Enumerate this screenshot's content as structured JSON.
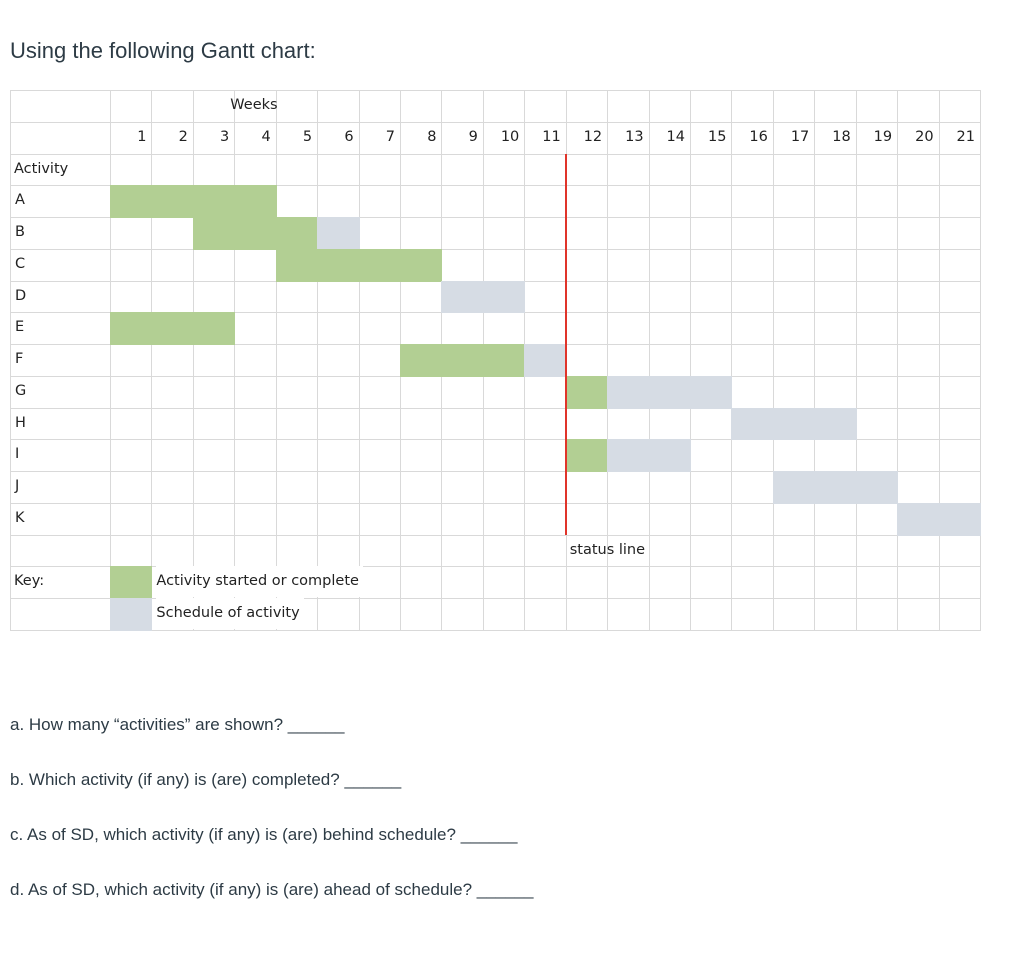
{
  "title": "Using the following Gantt chart:",
  "chart_data": {
    "type": "gantt",
    "header_label": "Weeks",
    "row_header": "Activity",
    "weeks": [
      1,
      2,
      3,
      4,
      5,
      6,
      7,
      8,
      9,
      10,
      11,
      12,
      13,
      14,
      15,
      16,
      17,
      18,
      19,
      20,
      21
    ],
    "activities": [
      {
        "name": "A",
        "started": [
          1,
          4
        ],
        "scheduled": null
      },
      {
        "name": "B",
        "started": [
          3,
          5
        ],
        "scheduled": [
          6,
          6
        ]
      },
      {
        "name": "C",
        "started": [
          5,
          8
        ],
        "scheduled": null
      },
      {
        "name": "D",
        "started": null,
        "scheduled": [
          9,
          10
        ]
      },
      {
        "name": "E",
        "started": [
          1,
          3
        ],
        "scheduled": null
      },
      {
        "name": "F",
        "started": [
          8,
          10
        ],
        "scheduled": [
          11,
          11
        ]
      },
      {
        "name": "G",
        "started": [
          12,
          12
        ],
        "scheduled": [
          13,
          15
        ]
      },
      {
        "name": "H",
        "started": null,
        "scheduled": [
          16,
          18
        ]
      },
      {
        "name": "I",
        "started": [
          12,
          12
        ],
        "scheduled": [
          13,
          14
        ]
      },
      {
        "name": "J",
        "started": null,
        "scheduled": [
          17,
          19
        ]
      },
      {
        "name": "K",
        "started": null,
        "scheduled": [
          20,
          21
        ]
      }
    ],
    "status_line_after_week": 11,
    "status_label": "status line",
    "key_label": "Key:",
    "legend": [
      {
        "label": "Activity started or complete",
        "color": "#b2cf93"
      },
      {
        "label": "Schedule of activity",
        "color": "#d6dce4"
      }
    ],
    "colors": {
      "started": "#b2cf93",
      "scheduled": "#d6dce4",
      "status_line": "#e0342a",
      "grid": "#d9d9d9"
    }
  },
  "questions": [
    "a. How many “activities” are shown? ______",
    "b. Which activity (if any) is (are) completed? ______",
    "c. As of SD, which activity (if any) is (are) behind schedule? ______",
    "d. As of SD, which activity (if any) is (are) ahead of schedule? ______"
  ]
}
